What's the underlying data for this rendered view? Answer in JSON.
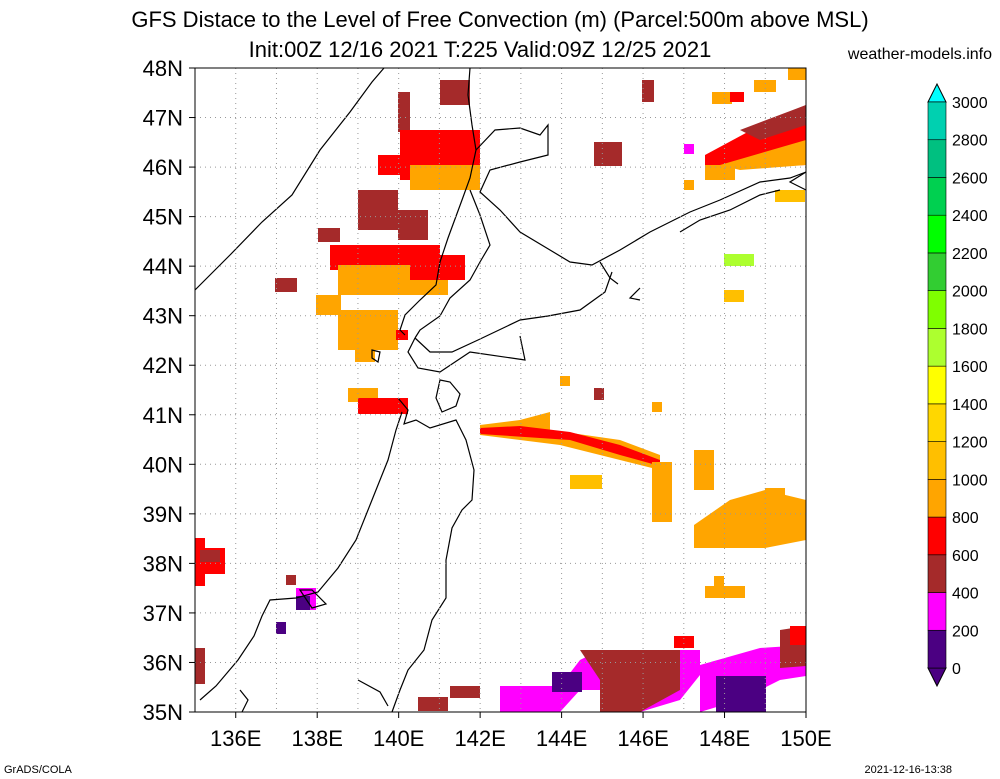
{
  "header": {
    "title_line1": "GFS Distace to the Level of Free Convection (m) (Parcel:500m above MSL)",
    "title_line2": "Init:00Z 12/16 2021 T:225 Valid:09Z 12/25 2021",
    "site": "weather-models.info"
  },
  "footer": {
    "left": "GrADS/COLA",
    "right": "2021-12-16-13:38"
  },
  "map": {
    "lat_labels": [
      "35N",
      "36N",
      "37N",
      "38N",
      "39N",
      "40N",
      "41N",
      "42N",
      "43N",
      "44N",
      "45N",
      "46N",
      "47N",
      "48N"
    ],
    "lon_labels": [
      "136E",
      "138E",
      "140E",
      "142E",
      "144E",
      "146E",
      "148E",
      "150E"
    ],
    "lat_range": [
      35,
      48
    ],
    "lon_range": [
      135,
      150
    ],
    "grid": "dotted"
  },
  "colorbar": {
    "labels": [
      "0",
      "200",
      "400",
      "600",
      "800",
      "1000",
      "1200",
      "1400",
      "1600",
      "1800",
      "2000",
      "2200",
      "2400",
      "2600",
      "2800",
      "3000"
    ],
    "colors": [
      "#4b0082",
      "#ff00ff",
      "#a52a2a",
      "#ff0000",
      "#ffa500",
      "#ffbf00",
      "#ffd700",
      "#ffff00",
      "#adff2f",
      "#7fff00",
      "#32cd32",
      "#00ff00",
      "#00d050",
      "#00c080",
      "#00d0b0",
      "#00ffff"
    ]
  }
}
